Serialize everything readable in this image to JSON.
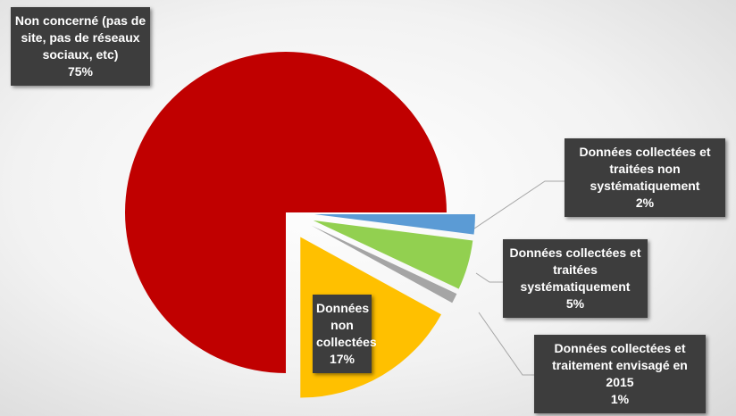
{
  "chart_data": {
    "type": "pie",
    "categories": [
      "Données collectées et traitées non systématiquement",
      "Données collectées et traitées systématiquement",
      "Données collectées et traitement envisagé en 2015",
      "Données non collectées",
      "Non concerné (pas de site, pas de réseaux sociaux, etc)"
    ],
    "values": [
      2,
      5,
      1,
      17,
      75
    ],
    "value_labels": [
      "2%",
      "5%",
      "1%",
      "17%",
      "75%"
    ],
    "colors": [
      "#5b9bd5",
      "#92d050",
      "#a5a5a5",
      "#ffc000",
      "#c00000"
    ]
  }
}
